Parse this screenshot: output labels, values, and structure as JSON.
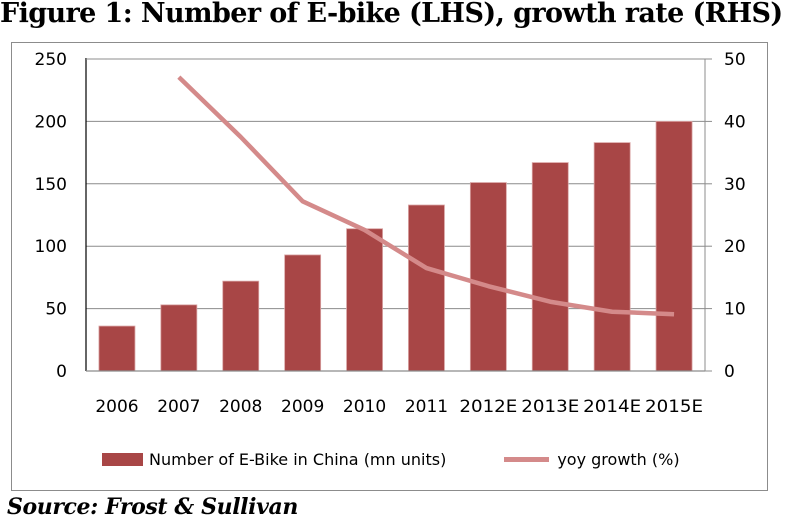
{
  "figure": {
    "title": "Figure 1: Number of E-bike (LHS), growth rate (RHS)",
    "source": "Source: Frost & Sullivan"
  },
  "colors": {
    "bar": "#a84646",
    "line": "#d48a8a",
    "grid": "#8c8c8c",
    "axis": "#000000"
  },
  "chart_data": {
    "type": "bar",
    "title": "Figure 1: Number of E-bike (LHS), growth rate (RHS)",
    "xlabel": "",
    "ylabel": "",
    "categories": [
      "2006",
      "2007",
      "2008",
      "2009",
      "2010",
      "2011",
      "2012E",
      "2013E",
      "2014E",
      "2015E"
    ],
    "series": [
      {
        "name": "Number of E-Bike in China (mn units)",
        "type": "bar",
        "axis": "left",
        "values": [
          36,
          53,
          72,
          93,
          114,
          133,
          151,
          167,
          183,
          200
        ]
      },
      {
        "name": "yoy growth (%)",
        "type": "line",
        "axis": "right",
        "values": [
          null,
          47.1,
          37.5,
          27.2,
          22.6,
          16.5,
          13.6,
          11.1,
          9.5,
          9.1
        ]
      }
    ],
    "ylim": [
      0,
      250
    ],
    "yticks": [
      0,
      50,
      100,
      150,
      200,
      250
    ],
    "y2lim": [
      0,
      50
    ],
    "y2ticks": [
      0,
      10,
      20,
      30,
      40,
      50
    ],
    "grid": true,
    "legend": "bottom"
  },
  "legend": {
    "bar_label": "Number of E-Bike in China (mn units)",
    "line_label": "yoy growth (%)"
  }
}
